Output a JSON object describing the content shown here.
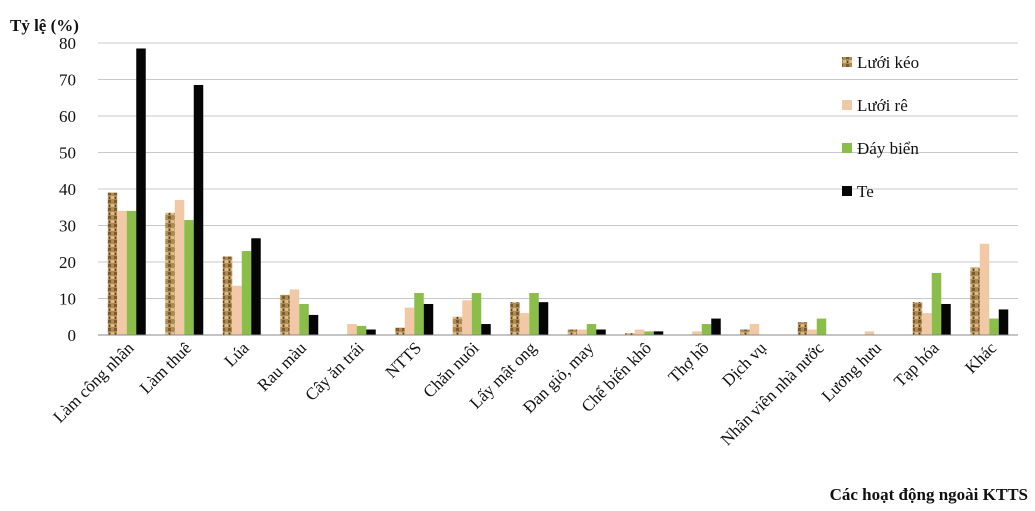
{
  "chart_data": {
    "type": "bar",
    "title": "",
    "ylabel": "Tỷ lệ (%)",
    "xlabel": "Các hoạt động ngoài KTTS",
    "ylim": [
      0,
      80
    ],
    "yticks": [
      0,
      10,
      20,
      30,
      40,
      50,
      60,
      70,
      80
    ],
    "grid": true,
    "legend_position": "top-right",
    "categories": [
      "Làm công nhân",
      "Làm thuê",
      "Lúa",
      "Rau màu",
      "Cây ăn trái",
      "NTTS",
      "Chăn nuôi",
      "Lấy mật ong",
      "Đan giỏ, may",
      "Chế biến khô",
      "Thợ hồ",
      "Dịch vụ",
      "Nhân viên nhà nước",
      "Lương hưu",
      "Tạp hóa",
      "Khác"
    ],
    "series": [
      {
        "name": "Lưới kéo",
        "color": "#a8844e",
        "values": [
          39,
          33.5,
          21.5,
          11,
          0,
          2,
          5,
          9,
          1.5,
          0.5,
          0,
          1.5,
          3.5,
          0,
          9,
          18.5
        ]
      },
      {
        "name": "Lưới rê",
        "color": "#f2c9a6",
        "values": [
          34,
          37,
          13.5,
          12.5,
          3,
          7.5,
          9.5,
          6,
          1.5,
          1.5,
          1,
          3,
          1.5,
          1,
          6,
          25
        ]
      },
      {
        "name": "Đáy biển",
        "color": "#8bbd4a",
        "values": [
          34,
          31.5,
          23,
          8.5,
          2.5,
          11.5,
          11.5,
          11.5,
          3,
          1,
          3,
          0,
          4.5,
          0,
          17,
          4.5
        ]
      },
      {
        "name": "Te",
        "color": "#050505",
        "values": [
          78.5,
          68.5,
          26.5,
          5.5,
          1.5,
          8.5,
          3,
          9,
          1.5,
          1,
          4.5,
          0,
          0,
          0,
          8.5,
          7
        ]
      }
    ]
  }
}
